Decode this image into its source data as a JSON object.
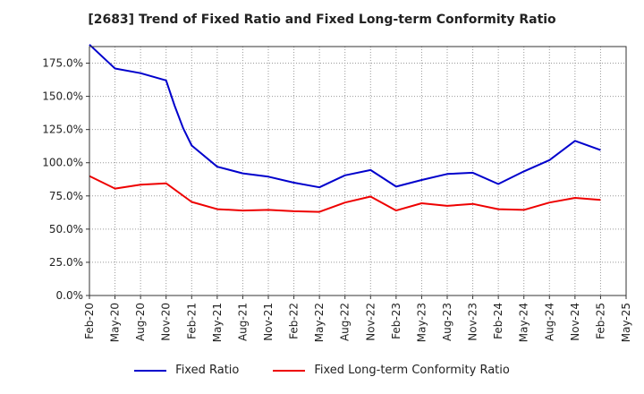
{
  "chart_data": {
    "type": "line",
    "title": "[2683]  Trend of Fixed Ratio and Fixed Long-term Conformity Ratio",
    "xlabel": "",
    "ylabel": "",
    "ylim": [
      0,
      187.5
    ],
    "yticks": [
      "0.0%",
      "25.0%",
      "50.0%",
      "75.0%",
      "100.0%",
      "125.0%",
      "150.0%",
      "175.0%"
    ],
    "xticks": [
      "Feb-20",
      "May-20",
      "Aug-20",
      "Nov-20",
      "Feb-21",
      "May-21",
      "Aug-21",
      "Nov-21",
      "Feb-22",
      "May-22",
      "Aug-22",
      "Nov-22",
      "Feb-23",
      "May-23",
      "Aug-23",
      "Nov-23",
      "Feb-24",
      "May-24",
      "Aug-24",
      "Nov-24",
      "Feb-25",
      "May-25"
    ],
    "grid": true,
    "legend_position": "bottom",
    "series": [
      {
        "name": "Fixed Ratio",
        "color": "#0000cc",
        "x": [
          "Feb-20",
          "May-20",
          "Aug-20",
          "Nov-20",
          "Dec-20",
          "Jan-21",
          "Feb-21",
          "May-21",
          "Aug-21",
          "Nov-21",
          "Feb-22",
          "May-22",
          "Aug-22",
          "Nov-22",
          "Feb-23",
          "May-23",
          "Aug-23",
          "Nov-23",
          "Feb-24",
          "May-24",
          "Aug-24",
          "Nov-24",
          "Feb-25"
        ],
        "values": [
          189,
          171,
          167.5,
          162,
          143,
          126,
          113,
          97,
          92,
          89.5,
          85,
          81.5,
          90.5,
          94.5,
          82,
          87,
          91.5,
          92.5,
          84,
          93.5,
          102,
          116.5,
          109.5
        ]
      },
      {
        "name": "Fixed Long-term Conformity Ratio",
        "color": "#ee0000",
        "x": [
          "Feb-20",
          "May-20",
          "Aug-20",
          "Nov-20",
          "Feb-21",
          "May-21",
          "Aug-21",
          "Nov-21",
          "Feb-22",
          "May-22",
          "Aug-22",
          "Nov-22",
          "Feb-23",
          "May-23",
          "Aug-23",
          "Nov-23",
          "Feb-24",
          "May-24",
          "Aug-24",
          "Nov-24",
          "Feb-25"
        ],
        "values": [
          90,
          80.5,
          83.5,
          84.5,
          70.5,
          65,
          64,
          64.5,
          63.5,
          63,
          70,
          74.5,
          64,
          69.5,
          67.5,
          69,
          65,
          64.5,
          70,
          73.5,
          72
        ]
      }
    ]
  }
}
